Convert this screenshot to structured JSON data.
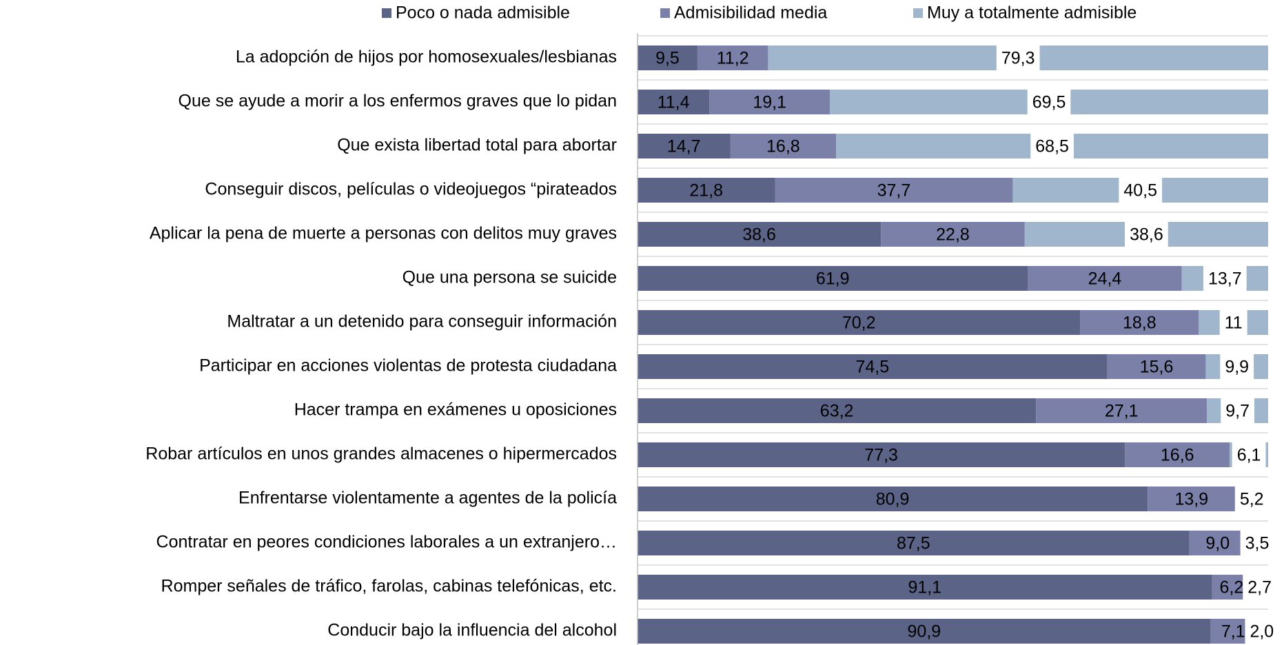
{
  "chart_data": {
    "type": "stacked_barh",
    "categories": [
      "La adopción de hijos por homosexuales/lesbianas",
      "Que se ayude a morir a los enfermos graves que lo pidan",
      "Que exista libertad total para abortar",
      "Conseguir discos, películas o videojuegos “pirateados",
      "Aplicar la pena de muerte a personas con delitos muy graves",
      "Que una persona se suicide",
      "Maltratar a un detenido para conseguir información",
      "Participar en acciones violentas de protesta ciudadana",
      "Hacer trampa en exámenes u oposiciones",
      "Robar artículos en unos grandes almacenes o hipermercados",
      "Enfrentarse violentamente a agentes de la policía",
      "Contratar en peores condiciones laborales a un extranjero…",
      "Romper señales de tráfico, farolas, cabinas telefónicas, etc.",
      "Conducir bajo la influencia del alcohol"
    ],
    "series": [
      {
        "name": "Poco o nada admisible",
        "color": "#5b6487",
        "values": [
          9.5,
          11.4,
          14.7,
          21.8,
          38.6,
          61.9,
          70.2,
          74.5,
          63.2,
          77.3,
          80.9,
          87.5,
          91.1,
          90.9
        ],
        "value_labels": [
          "9,5",
          "11,4",
          "14,7",
          "21,8",
          "38,6",
          "61,9",
          "70,2",
          "74,5",
          "63,2",
          "77,3",
          "80,9",
          "87,5",
          "91,1",
          "90,9"
        ]
      },
      {
        "name": "Admisibilidad media",
        "color": "#7a80a8",
        "values": [
          11.2,
          19.1,
          16.8,
          37.7,
          22.8,
          24.4,
          18.8,
          15.6,
          27.1,
          16.6,
          13.9,
          9.0,
          6.2,
          7.1
        ],
        "value_labels": [
          "11,2",
          "19,1",
          "16,8",
          "37,7",
          "22,8",
          "24,4",
          "18,8",
          "15,6",
          "27,1",
          "16,6",
          "13,9",
          "9,0",
          "6,2",
          "7,1"
        ]
      },
      {
        "name": "Muy a totalmente admisible",
        "color": "#a0b6cc",
        "values": [
          79.3,
          69.5,
          68.5,
          40.5,
          38.6,
          13.7,
          11,
          9.9,
          9.7,
          6.1,
          5.2,
          3.5,
          2.7,
          2.0
        ],
        "value_labels": [
          "79,3",
          "69,5",
          "68,5",
          "40,5",
          "38,6",
          "13,7",
          "11",
          "9,9",
          "9,7",
          "6,1",
          "5,2",
          "3,5",
          "2,7",
          "2,0"
        ]
      }
    ],
    "xlim": [
      0,
      100
    ]
  }
}
